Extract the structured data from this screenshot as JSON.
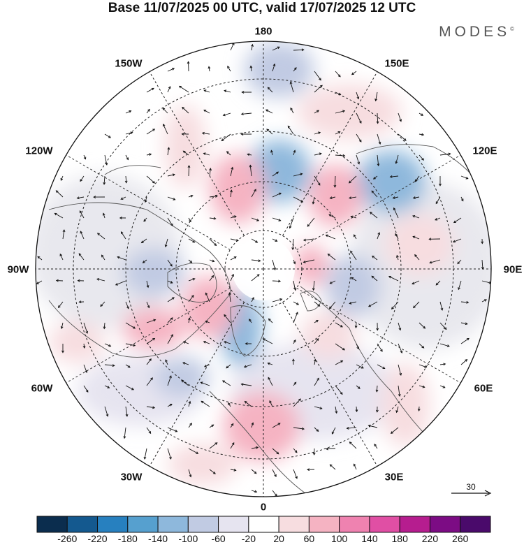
{
  "title": "Base 11/07/2025 00 UTC, valid 17/07/2025 12 UTC",
  "brand": "MODES",
  "brand_mark": "©",
  "longitude_labels": {
    "north": "180",
    "south": "0",
    "west": "90W",
    "east": "90E",
    "nw150": "150W",
    "ne150": "150E",
    "nw120": "120W",
    "ne120": "120E",
    "sw60": "60W",
    "se60": "60E",
    "sw30": "30W",
    "se30": "30E"
  },
  "colorbar": {
    "ticks": [
      "-260",
      "-220",
      "-180",
      "-140",
      "-100",
      "-60",
      "-20",
      "20",
      "60",
      "100",
      "140",
      "180",
      "220",
      "260"
    ],
    "colors": [
      "#0b2d4e",
      "#14598f",
      "#2780bf",
      "#56a0cf",
      "#8eb8dc",
      "#c1cbe3",
      "#e6e4f0",
      "#ffffff",
      "#f7dde0",
      "#f5b3c2",
      "#ef82b0",
      "#e04fa4",
      "#b61d8f",
      "#7c0c84",
      "#4a0a6b"
    ]
  },
  "wind_scale": {
    "label": "30",
    "arrow_icon": "arrow-right-icon"
  }
}
